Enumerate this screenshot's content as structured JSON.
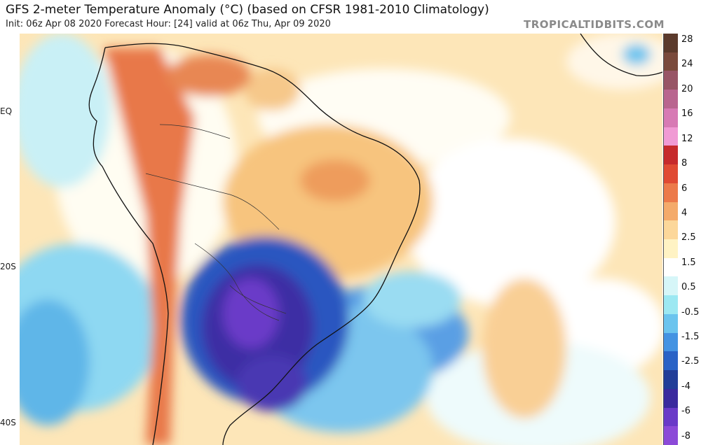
{
  "header": {
    "title": "GFS 2-meter Temperature Anomaly (°C) (based on CFSR 1981-2010 Climatology)",
    "subtitle": "Init: 06z Apr 08 2020   Forecast Hour: [24]   valid at 06z Thu, Apr 09 2020",
    "brand": "TROPICALTIDBITS.COM"
  },
  "lat_labels": [
    "EQ",
    "20S",
    "40S"
  ],
  "colorbar": {
    "labels": [
      "28",
      "24",
      "20",
      "16",
      "12",
      "8",
      "6",
      "4",
      "2.5",
      "1.5",
      "0.5",
      "-0.5",
      "-1.5",
      "-2.5",
      "-4",
      "-6",
      "-8"
    ],
    "colors": [
      "#5b3a2c",
      "#7a4a3c",
      "#985566",
      "#b9658f",
      "#d77ab4",
      "#f09ad4",
      "#c62a2c",
      "#e04a33",
      "#ec7a4a",
      "#f4aa6a",
      "#fcd79a",
      "#fff3c4",
      "#ffffff",
      "#d6f6f8",
      "#9ce8f2",
      "#6bc4ee",
      "#4493e2",
      "#2a63c6",
      "#223e98",
      "#3a2a9e",
      "#6a3ac8",
      "#8c4ad8"
    ]
  }
}
